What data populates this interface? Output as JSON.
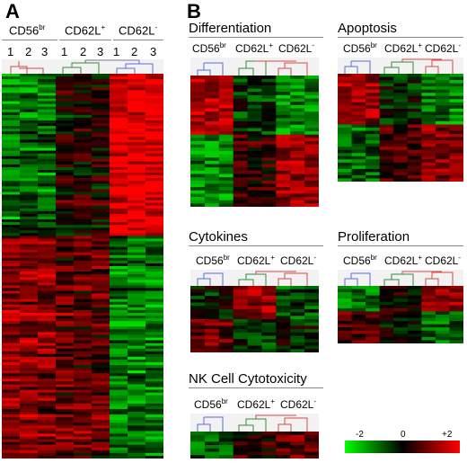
{
  "panel_a": {
    "letter": "A",
    "groups": [
      {
        "base": "CD56",
        "sup": "br"
      },
      {
        "base": "CD62L",
        "sup": "+"
      },
      {
        "base": "CD62L",
        "sup": "-"
      }
    ],
    "replicates": [
      "1",
      "2",
      "3",
      "1",
      "2",
      "3",
      "1",
      "2",
      "3"
    ]
  },
  "panel_b": {
    "letter": "B",
    "sections": [
      {
        "title": "Differentiation"
      },
      {
        "title": "Apoptosis"
      },
      {
        "title": "Cytokines"
      },
      {
        "title": "Proliferation"
      },
      {
        "title": "NK Cell Cytotoxicity"
      }
    ],
    "groups": [
      {
        "base": "CD56",
        "sup": "br"
      },
      {
        "base": "CD62L",
        "sup": "+"
      },
      {
        "base": "CD62L",
        "sup": "-"
      }
    ]
  },
  "color_scale": {
    "min_label": "-2",
    "mid_label": "0",
    "max_label": "+2",
    "low_color": "#00ff00",
    "mid_color": "#000000",
    "high_color": "#ff0000"
  },
  "dendrogram_colors": {
    "cd56": "#5b6fd6",
    "cd62l_plus": "#3a8a3a",
    "cd62l_minus": "#d64a4a",
    "neutral": "#7a7a9a"
  }
}
